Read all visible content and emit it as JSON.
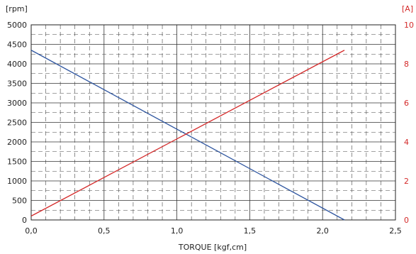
{
  "chart_data": {
    "type": "line",
    "title": "",
    "xlabel": "TORQUE [kgf,cm]",
    "xlim": [
      0,
      2.5
    ],
    "x_ticks": [
      "0,0",
      "0,5",
      "1,0",
      "1,5",
      "2,0",
      "2,5"
    ],
    "y_left": {
      "unit": "[rpm]",
      "lim": [
        0,
        5000
      ],
      "ticks": [
        "0",
        "500",
        "1000",
        "1500",
        "2000",
        "2500",
        "3000",
        "3500",
        "4000",
        "4500",
        "5000"
      ]
    },
    "y_right": {
      "unit": "[A]",
      "lim": [
        0,
        10
      ],
      "ticks": [
        "0",
        "2",
        "4",
        "6",
        "8",
        "10"
      ],
      "color": "#d42a2a"
    },
    "grid": true,
    "grid_style": "solid major, dashed minor",
    "series": [
      {
        "axis": "left",
        "color": "#2f56a0",
        "x": [
          0,
          2.15
        ],
        "y": [
          4350,
          0
        ]
      },
      {
        "axis": "right",
        "color": "#d42a2a",
        "x": [
          0,
          2.15
        ],
        "y": [
          0.2,
          8.7
        ]
      }
    ]
  }
}
